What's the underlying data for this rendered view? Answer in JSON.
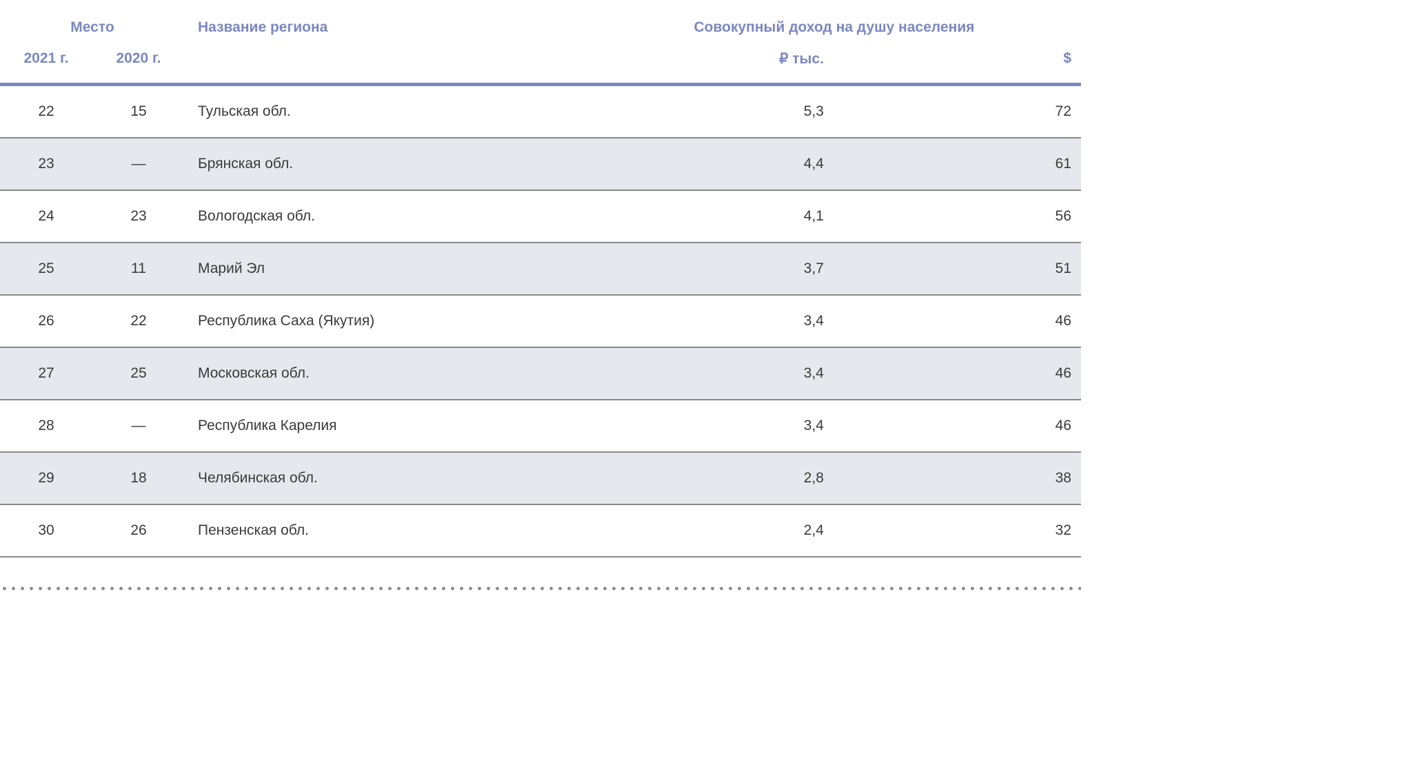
{
  "table": {
    "headers": {
      "place": "Место",
      "year_2021": "2021 г.",
      "year_2020": "2020 г.",
      "region": "Название региона",
      "income": "Совокупный доход на душу населения",
      "rub": "₽ тыс.",
      "usd": "$"
    },
    "rows": [
      {
        "y2021": "22",
        "y2020": "15",
        "region": "Тульская обл.",
        "rub": "5,3",
        "usd": "72"
      },
      {
        "y2021": "23",
        "y2020": "—",
        "region": "Брянская обл.",
        "rub": "4,4",
        "usd": "61"
      },
      {
        "y2021": "24",
        "y2020": "23",
        "region": "Вологодская обл.",
        "rub": "4,1",
        "usd": "56"
      },
      {
        "y2021": "25",
        "y2020": "11",
        "region": "Марий Эл",
        "rub": "3,7",
        "usd": "51"
      },
      {
        "y2021": "26",
        "y2020": "22",
        "region": "Республика Саха (Якутия)",
        "rub": "3,4",
        "usd": "46"
      },
      {
        "y2021": "27",
        "y2020": "25",
        "region": "Московская обл.",
        "rub": "3,4",
        "usd": "46"
      },
      {
        "y2021": "28",
        "y2020": "—",
        "region": "Республика Карелия",
        "rub": "3,4",
        "usd": "46"
      },
      {
        "y2021": "29",
        "y2020": "18",
        "region": "Челябинская обл.",
        "rub": "2,8",
        "usd": "38"
      },
      {
        "y2021": "30",
        "y2020": "26",
        "region": "Пензенская обл.",
        "rub": "2,4",
        "usd": "32"
      }
    ]
  },
  "colors": {
    "header_text": "#7b87c2",
    "header_rule": "#7b87c2",
    "row_alt_bg": "#e7e8ed",
    "row_rule": "#8a8a8a",
    "body_text": "#3a3a3a"
  }
}
